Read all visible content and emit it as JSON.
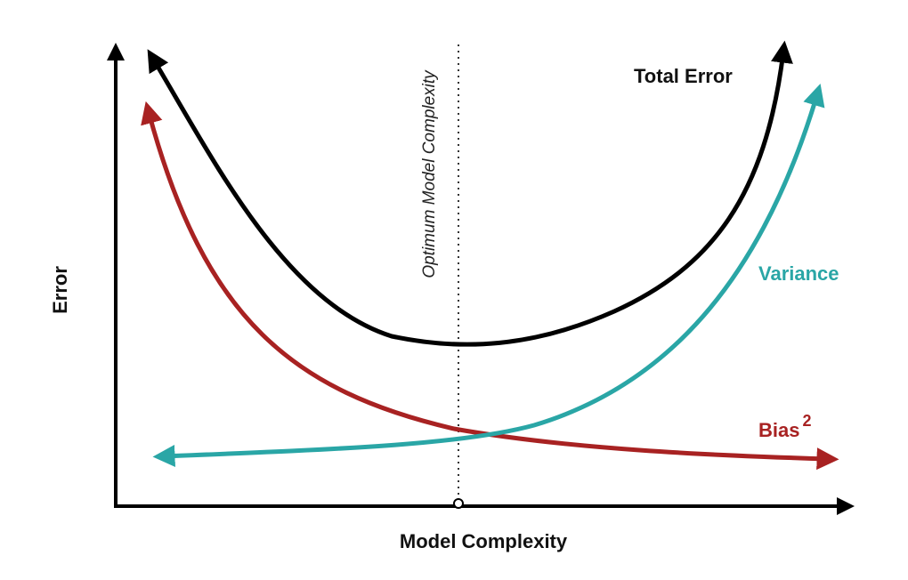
{
  "axes": {
    "x_label": "Model Complexity",
    "y_label": "Error"
  },
  "optimum": {
    "label": "Optimum Model Complexity"
  },
  "curves": {
    "total_error": {
      "label": "Total Error",
      "color": "#000000"
    },
    "variance": {
      "label": "Variance",
      "color": "#2aa6a6"
    },
    "bias": {
      "label": "Bias",
      "superscript": "2",
      "color": "#a82222"
    }
  },
  "colors": {
    "axis": "#000000",
    "background": "#ffffff"
  }
}
